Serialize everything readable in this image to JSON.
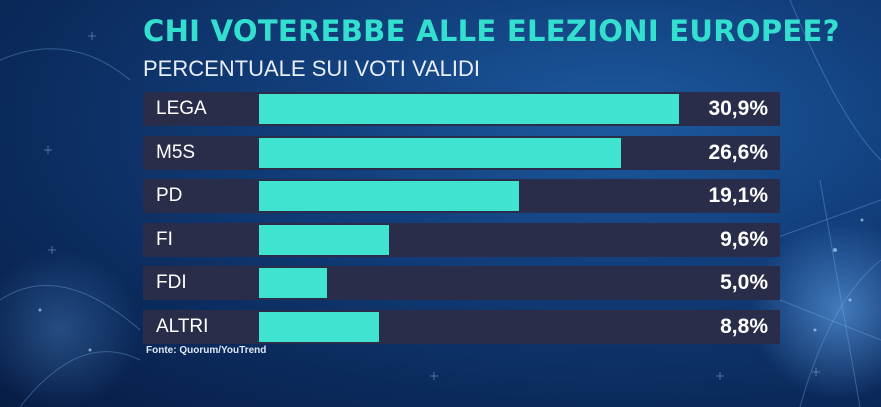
{
  "title": "CHI VOTEREBBE ALLE ELEZIONI EUROPEE?",
  "subtitle": "PERCENTUALE SUI VOTI VALIDI",
  "source": "Fonte: Quorum/YouTrend",
  "colors": {
    "bar": "#3fe3cf",
    "title": "#33e0cf",
    "row_bg": "#2a2d4a"
  },
  "chart_data": {
    "type": "bar",
    "orientation": "horizontal",
    "title": "CHI VOTEREBBE ALLE ELEZIONI EUROPEE?",
    "subtitle": "PERCENTUALE SUI VOTI VALIDI",
    "categories": [
      "LEGA",
      "M5S",
      "PD",
      "FI",
      "FDI",
      "ALTRI"
    ],
    "values": [
      30.9,
      26.6,
      19.1,
      9.6,
      5.0,
      8.8
    ],
    "value_labels": [
      "30,9%",
      "26,6%",
      "19,1%",
      "9,6%",
      "5,0%",
      "8,8%"
    ],
    "xlim": [
      0,
      30.9
    ],
    "grid": false,
    "legend": "none"
  }
}
